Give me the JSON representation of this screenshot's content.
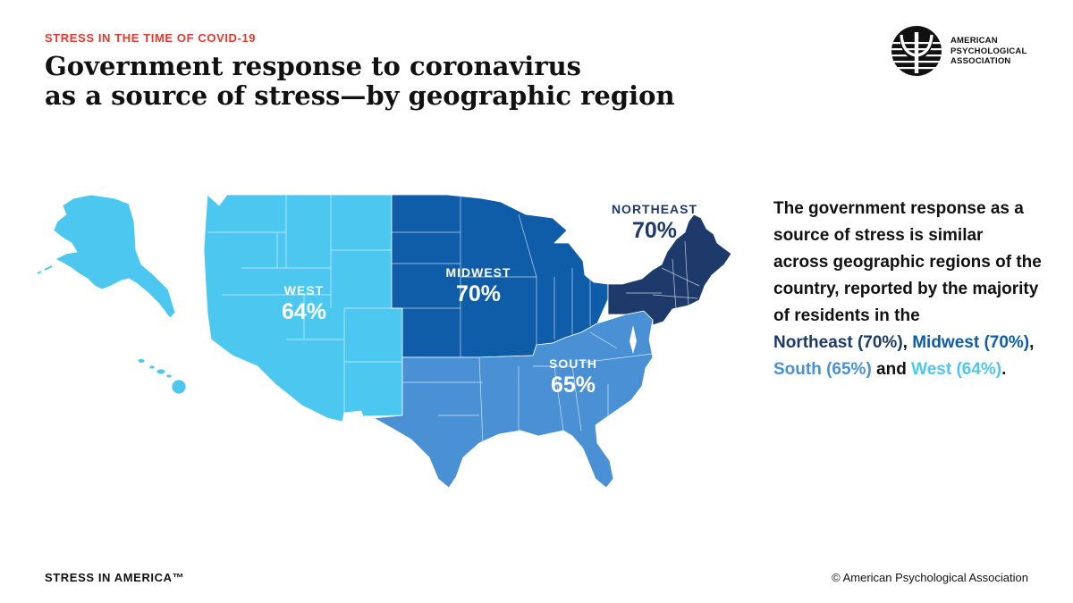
{
  "header": {
    "kicker": "STRESS IN THE TIME OF COVID-19",
    "title_line1": "Government response to coronavirus",
    "title_line2": "as a source of stress—by geographic region"
  },
  "logo": {
    "icon": "psi-logo-icon",
    "line1": "AMERICAN",
    "line2": "PSYCHOLOGICAL",
    "line3": "ASSOCIATION"
  },
  "map_data": {
    "type": "choropleth",
    "regions": [
      {
        "name": "WEST",
        "value": "64%",
        "color": "#4cc7f0"
      },
      {
        "name": "MIDWEST",
        "value": "70%",
        "color": "#0f5ca8"
      },
      {
        "name": "SOUTH",
        "value": "65%",
        "color": "#4a90d4"
      },
      {
        "name": "NORTHEAST",
        "value": "70%",
        "color": "#1d3a6b"
      }
    ]
  },
  "description": {
    "intro": "The government response as a source of stress is similar across geographic regions of the country, reported by the majority of residents in the",
    "northeast": "Northeast (70%)",
    "sep1": ", ",
    "midwest": "Midwest (70%)",
    "sep2": ", ",
    "south": "South (65%)",
    "sep3": " and ",
    "west": "West (64%)",
    "end": "."
  },
  "footer": {
    "left": "STRESS IN AMERICA™",
    "right": "© American Psychological Association"
  }
}
